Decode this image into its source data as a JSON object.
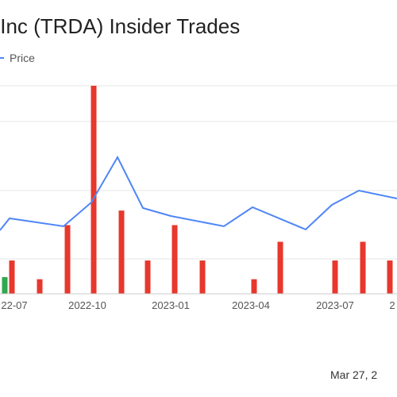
{
  "chart_data": {
    "type": "bar",
    "title": "s Inc (TRDA) Insider Trades",
    "legend": {
      "price_label": "Price",
      "placement": "top-left"
    },
    "x_tick_labels": [
      "22-07",
      "2022-10",
      "2023-01",
      "2023-04",
      "2023-07",
      "2"
    ],
    "grid": true,
    "bars": {
      "unit": "relative count",
      "ylim": [
        0,
        100
      ],
      "sells": [
        {
          "x": 15,
          "value": 16
        },
        {
          "x": 50,
          "value": 7
        },
        {
          "x": 85,
          "value": 33
        },
        {
          "x": 118,
          "value": 100
        },
        {
          "x": 153,
          "value": 40
        },
        {
          "x": 186,
          "value": 16
        },
        {
          "x": 220,
          "value": 33
        },
        {
          "x": 255,
          "value": 16
        },
        {
          "x": 320,
          "value": 7
        },
        {
          "x": 353,
          "value": 25
        },
        {
          "x": 422,
          "value": 16
        },
        {
          "x": 457,
          "value": 25
        },
        {
          "x": 491,
          "value": 16
        }
      ],
      "buys": [
        {
          "x": 6,
          "value": 8
        }
      ]
    },
    "price_line": {
      "points": [
        [
          0,
          290
        ],
        [
          12,
          275
        ],
        [
          80,
          285
        ],
        [
          115,
          255
        ],
        [
          148,
          198
        ],
        [
          180,
          262
        ],
        [
          215,
          272
        ],
        [
          282,
          285
        ],
        [
          318,
          261
        ],
        [
          385,
          289
        ],
        [
          418,
          258
        ],
        [
          452,
          240
        ],
        [
          500,
          250
        ]
      ]
    },
    "footer_date": "Mar 27, 2",
    "colors": {
      "sell": "#e8372c",
      "buy": "#2fa84f",
      "price": "#4f86f7",
      "grid": "#e6e6e6"
    }
  }
}
